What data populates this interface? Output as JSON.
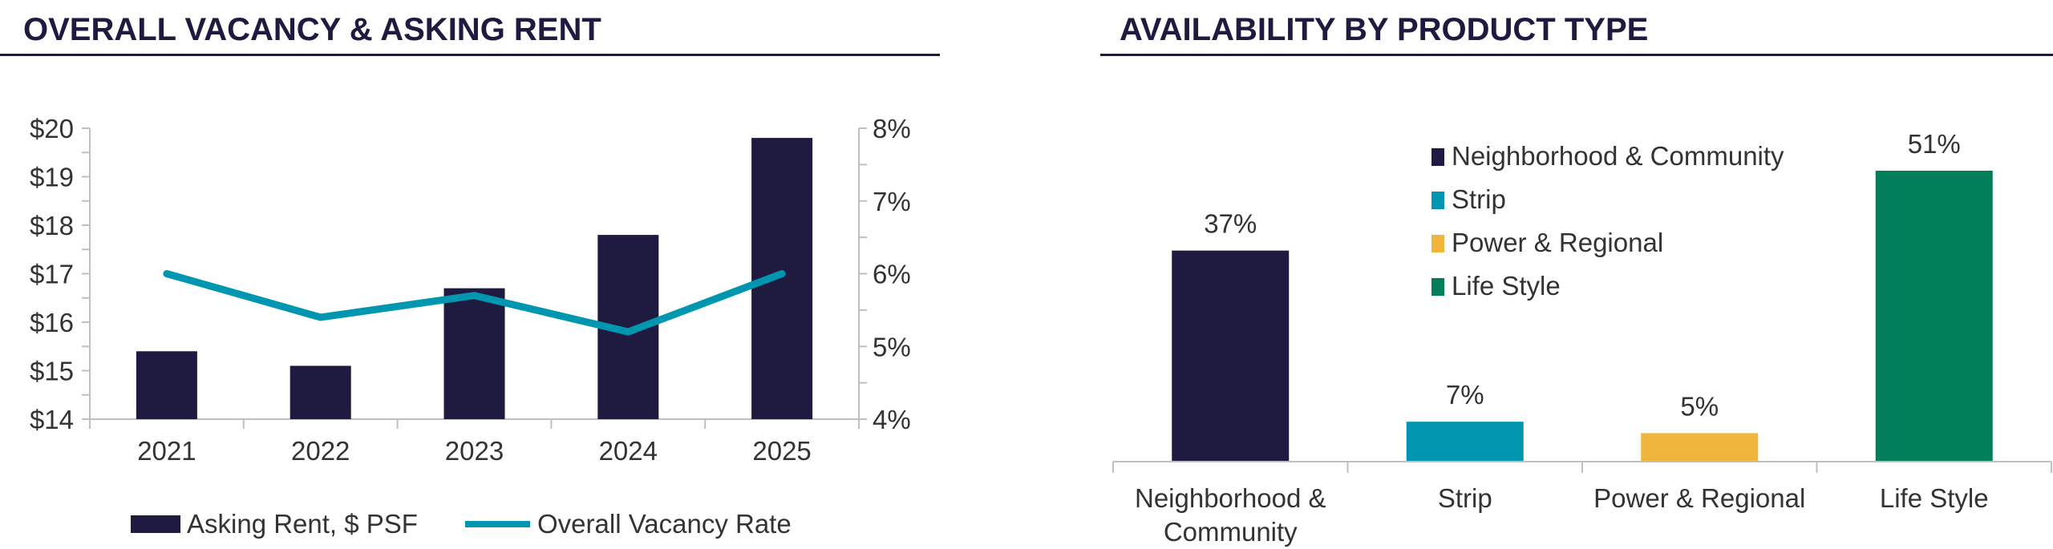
{
  "chart_data": [
    {
      "type": "bar+line",
      "title": "OVERALL VACANCY & ASKING RENT",
      "categories": [
        "2021",
        "2022",
        "2023",
        "2024",
        "2025"
      ],
      "series": [
        {
          "name": "Asking Rent, $ PSF",
          "type": "bar",
          "axis": "left",
          "color": "#1f1a40",
          "values": [
            15.4,
            15.1,
            16.7,
            17.8,
            19.8
          ]
        },
        {
          "name": "Overall Vacancy Rate",
          "type": "line",
          "axis": "right",
          "color": "#0096b0",
          "values": [
            6.0,
            5.4,
            5.7,
            5.2,
            6.0
          ]
        }
      ],
      "left_axis": {
        "ylim": [
          14,
          20
        ],
        "ticks": [
          "$14",
          "$15",
          "$16",
          "$17",
          "$18",
          "$19",
          "$20"
        ]
      },
      "right_axis": {
        "ylim": [
          4,
          8
        ],
        "ticks": [
          "4%",
          "5%",
          "6%",
          "7%",
          "8%"
        ]
      },
      "grid": false,
      "legend": "bottom"
    },
    {
      "type": "bar",
      "title": "AVAILABILITY BY PRODUCT TYPE",
      "categories": [
        [
          "Neighborhood &",
          "Community"
        ],
        [
          "Strip"
        ],
        [
          "Power & Regional"
        ],
        [
          "Life Style"
        ]
      ],
      "legend_entries": [
        "Neighborhood & Community",
        "Strip",
        "Power & Regional",
        "Life Style"
      ],
      "values": [
        37,
        7,
        5,
        51
      ],
      "data_labels": [
        "37%",
        "7%",
        "5%",
        "51%"
      ],
      "colors": [
        "#1f1a40",
        "#0096b0",
        "#f0b63c",
        "#007e59"
      ],
      "ylim": [
        0,
        51
      ],
      "grid": false,
      "legend": "top-center"
    }
  ]
}
